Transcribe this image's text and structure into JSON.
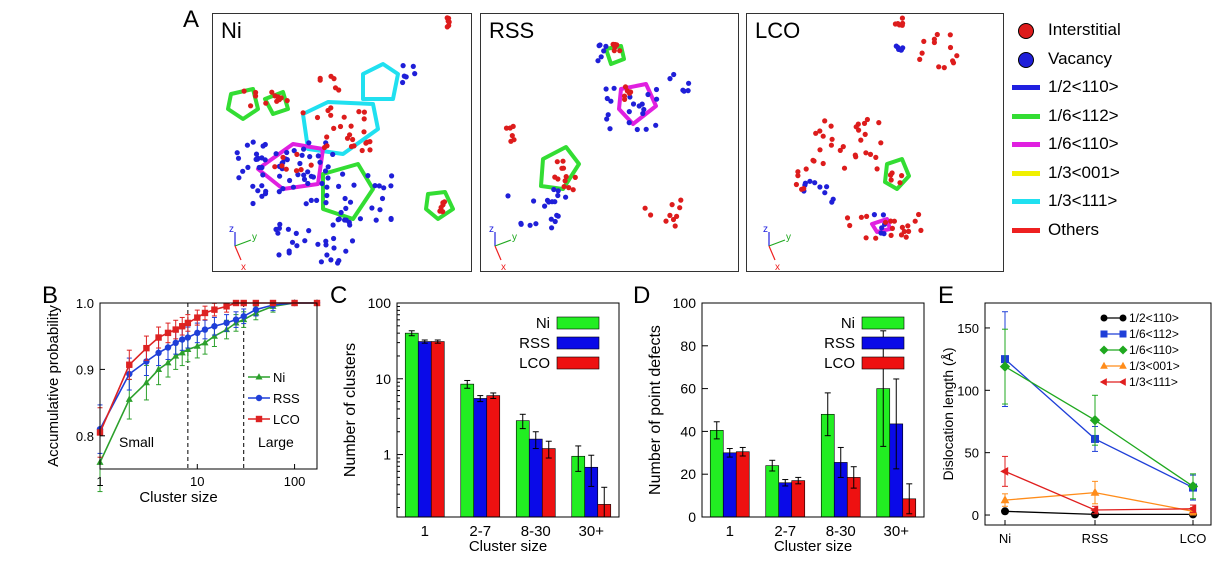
{
  "panel_a": {
    "letter": "A",
    "snapshots": [
      {
        "title": "Ni",
        "axes": [
          "z",
          "y",
          "x"
        ]
      },
      {
        "title": "RSS",
        "axes": [
          "z",
          "y",
          "x"
        ]
      },
      {
        "title": "LCO",
        "axes": [
          "z",
          "y",
          "x"
        ]
      }
    ],
    "legend": [
      {
        "kind": "dot",
        "label": "Interstitial",
        "color": "#dd1c1c"
      },
      {
        "kind": "dot",
        "label": "Vacancy",
        "color": "#1f1fd8"
      },
      {
        "kind": "line",
        "label": "1/2<110>",
        "color": "#2020e0"
      },
      {
        "kind": "line",
        "label": "1/6<112>",
        "color": "#33dd33"
      },
      {
        "kind": "line",
        "label": "1/6<110>",
        "color": "#e020e0"
      },
      {
        "kind": "line",
        "label": "1/3<001>",
        "color": "#f0f000"
      },
      {
        "kind": "line",
        "label": "1/3<111>",
        "color": "#20e0f0"
      },
      {
        "kind": "line",
        "label": "Others",
        "color": "#ee2020"
      }
    ]
  },
  "chart_data": [
    {
      "panel": "B",
      "type": "line",
      "xlabel": "Cluster size",
      "ylabel": "Accumulative probability",
      "xscale": "log",
      "xlim": [
        1,
        170
      ],
      "ylim": [
        0.75,
        1.0
      ],
      "xticks": [
        "1",
        "10",
        "100"
      ],
      "yticks": [
        "0.8",
        "0.9",
        "1.0"
      ],
      "annotations": [
        "Small",
        "Large"
      ],
      "legend_position": "right",
      "series": [
        {
          "name": "Ni",
          "color": "#2ca02c",
          "marker": "triangle",
          "x": [
            1,
            2,
            3,
            4,
            5,
            6,
            7,
            8,
            10,
            12,
            15,
            20,
            25,
            30,
            40,
            60,
            100,
            170
          ],
          "y": [
            0.76,
            0.855,
            0.88,
            0.9,
            0.91,
            0.92,
            0.925,
            0.93,
            0.935,
            0.94,
            0.95,
            0.96,
            0.97,
            0.975,
            0.985,
            0.995,
            1.0,
            1.0
          ]
        },
        {
          "name": "RSS",
          "color": "#1f3fd8",
          "marker": "circle",
          "x": [
            1,
            2,
            3,
            4,
            5,
            6,
            7,
            8,
            10,
            12,
            15,
            20,
            25,
            30,
            40,
            60,
            100,
            170
          ],
          "y": [
            0.81,
            0.893,
            0.912,
            0.925,
            0.933,
            0.94,
            0.945,
            0.948,
            0.955,
            0.96,
            0.965,
            0.97,
            0.975,
            0.98,
            0.99,
            0.997,
            1.0,
            1.0
          ]
        },
        {
          "name": "LCO",
          "color": "#dd2222",
          "marker": "square",
          "x": [
            1,
            2,
            3,
            4,
            5,
            6,
            7,
            8,
            10,
            12,
            15,
            20,
            25,
            30,
            40,
            60,
            100,
            170
          ],
          "y": [
            0.805,
            0.907,
            0.932,
            0.948,
            0.955,
            0.96,
            0.965,
            0.97,
            0.978,
            0.985,
            0.99,
            0.995,
            1.0,
            1.0,
            1.0,
            1.0,
            1.0,
            1.0
          ]
        }
      ]
    },
    {
      "panel": "C",
      "type": "bar",
      "xlabel": "Cluster size",
      "ylabel": "Number of clusters",
      "yscale": "log",
      "ylim": [
        0.15,
        100
      ],
      "yticks": [
        "1",
        "10",
        "100"
      ],
      "categories": [
        "1",
        "2-7",
        "8-30",
        "30+"
      ],
      "legend_position": "top-right",
      "series": [
        {
          "name": "Ni",
          "color": "#22ee22",
          "values": [
            40,
            8.5,
            2.8,
            0.95
          ],
          "err": [
            3,
            1,
            0.6,
            0.35
          ]
        },
        {
          "name": "RSS",
          "color": "#0a0ae8",
          "values": [
            31,
            5.5,
            1.6,
            0.68
          ],
          "err": [
            1.5,
            0.5,
            0.4,
            0.3
          ]
        },
        {
          "name": "LCO",
          "color": "#ee1111",
          "values": [
            31,
            6,
            1.2,
            0.22
          ],
          "err": [
            1.5,
            0.5,
            0.3,
            0.15
          ]
        }
      ]
    },
    {
      "panel": "D",
      "type": "bar",
      "xlabel": "Cluster size",
      "ylabel": "Number of point defects",
      "ylim": [
        0,
        100
      ],
      "yticks": [
        "0",
        "20",
        "40",
        "60",
        "80",
        "100"
      ],
      "categories": [
        "1",
        "2-7",
        "8-30",
        "30+"
      ],
      "legend_position": "top-right",
      "series": [
        {
          "name": "Ni",
          "color": "#22ee22",
          "values": [
            40.5,
            24,
            48,
            60
          ],
          "err": [
            4,
            2.5,
            10,
            27
          ]
        },
        {
          "name": "RSS",
          "color": "#0a0ae8",
          "values": [
            30,
            16,
            25.5,
            43.5
          ],
          "err": [
            2,
            1.5,
            7,
            21
          ]
        },
        {
          "name": "LCO",
          "color": "#ee1111",
          "values": [
            30.5,
            17,
            18.5,
            8.5
          ],
          "err": [
            2,
            1.5,
            5,
            7
          ]
        }
      ]
    },
    {
      "panel": "E",
      "type": "line",
      "xlabel": "",
      "ylabel": "Dislocation length (Å)",
      "ylim": [
        -8,
        170
      ],
      "yticks": [
        "0",
        "50",
        "100",
        "150"
      ],
      "categories": [
        "Ni",
        "RSS",
        "LCO"
      ],
      "legend_position": "top-right",
      "series": [
        {
          "name": "1/2<110>",
          "color": "#000000",
          "marker": "circle",
          "values": [
            3,
            0.5,
            0.5
          ],
          "err": [
            0,
            0,
            0
          ]
        },
        {
          "name": "1/6<112>",
          "color": "#1f3fd8",
          "marker": "square",
          "values": [
            125,
            61,
            22
          ],
          "err": [
            38,
            10,
            10
          ]
        },
        {
          "name": "1/6<110>",
          "color": "#1fa81f",
          "marker": "diamond",
          "values": [
            119,
            76,
            23
          ],
          "err": [
            30,
            20,
            10
          ]
        },
        {
          "name": "1/3<001>",
          "color": "#ff8c1a",
          "marker": "triangle-up",
          "values": [
            12,
            18,
            3
          ],
          "err": [
            5,
            9,
            3
          ]
        },
        {
          "name": "1/3<111>",
          "color": "#e01f1f",
          "marker": "triangle-left",
          "values": [
            35,
            4,
            5
          ],
          "err": [
            12,
            3,
            3
          ]
        }
      ]
    }
  ]
}
